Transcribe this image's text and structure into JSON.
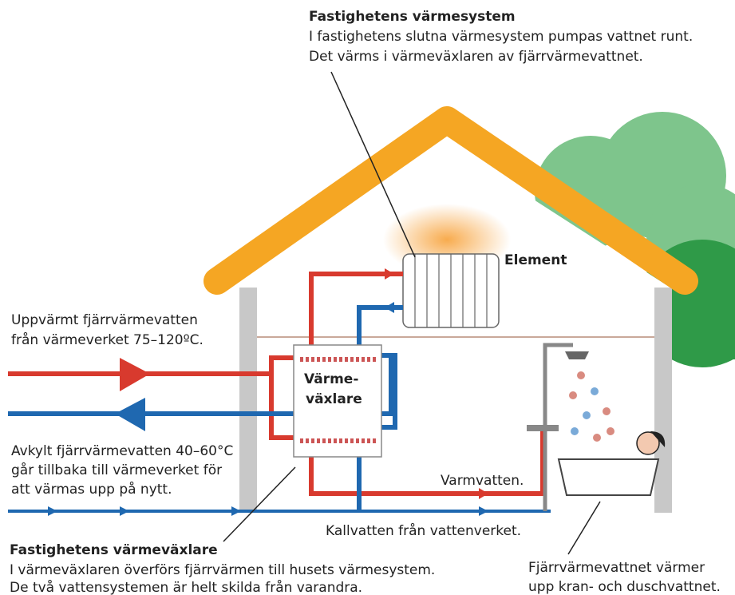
{
  "top_note": {
    "title": "Fastighetens värmesystem",
    "lines": [
      "I fastighetens slutna värmesystem pumpas vattnet runt.",
      "Det värms i värmeväxlaren av fjärrvärmevattnet."
    ]
  },
  "element_label": "Element",
  "incoming": {
    "lines": [
      "Uppvärmt fjärrvärmevatten",
      "från värmeverket 75–120ºC."
    ]
  },
  "exchanger_label": {
    "lines": [
      "Värme-",
      "växlare"
    ]
  },
  "outgoing": {
    "lines": [
      "Avkylt fjärrvärmevatten 40–60°C",
      "går tillbaka till värmeverket för",
      "att värmas upp på nytt."
    ]
  },
  "hot_water_label": "Varmvatten.",
  "cold_water_label": "Kallvatten från vattenverket.",
  "bottom_note": {
    "title": "Fastighetens värmeväxlare",
    "lines": [
      "I värmeväxlaren överförs fjärrvärmen till husets värmesystem.",
      "De två vattensystemen är helt skilda från varandra."
    ]
  },
  "tap_note": {
    "lines": [
      "Fjärrvärmevattnet värmer",
      "upp kran- och duschvattnet."
    ]
  }
}
